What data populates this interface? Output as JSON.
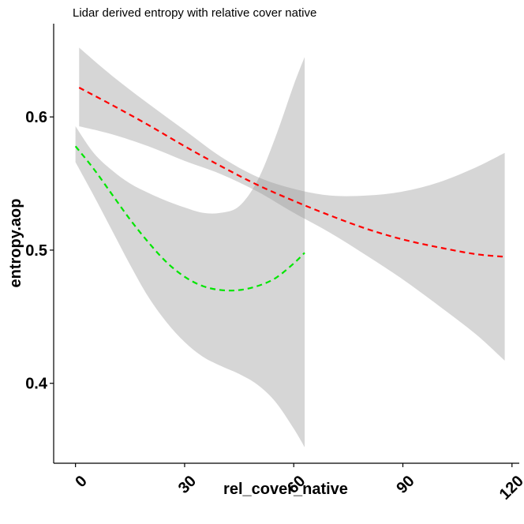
{
  "chart_data": {
    "type": "line",
    "title": "Lidar derived entropy with relative cover native",
    "xlabel": "rel_cover_native",
    "ylabel": "entropy.aop",
    "xlim": [
      -6,
      122
    ],
    "ylim": [
      0.34,
      0.67
    ],
    "x_ticks": [
      0,
      30,
      60,
      90,
      120
    ],
    "x_tick_labels": [
      "0",
      "30",
      "60",
      "90",
      "120"
    ],
    "y_ticks": [
      0.4,
      0.5,
      0.6
    ],
    "y_tick_labels": [
      "0.4",
      "0.5",
      "0.6"
    ],
    "grid": false,
    "legend": "none",
    "series": [
      {
        "color": "#ff0000",
        "line_style": "dashed",
        "x": [
          1,
          10,
          20,
          30,
          40,
          50,
          60,
          70,
          80,
          90,
          100,
          110,
          118
        ],
        "y": [
          0.622,
          0.609,
          0.594,
          0.578,
          0.563,
          0.549,
          0.537,
          0.526,
          0.516,
          0.508,
          0.502,
          0.497,
          0.495
        ],
        "ci_lower": [
          0.593,
          0.587,
          0.578,
          0.567,
          0.557,
          0.544,
          0.528,
          0.513,
          0.496,
          0.478,
          0.458,
          0.437,
          0.417
        ],
        "ci_upper": [
          0.652,
          0.631,
          0.61,
          0.59,
          0.57,
          0.555,
          0.546,
          0.541,
          0.541,
          0.544,
          0.551,
          0.562,
          0.573
        ]
      },
      {
        "color": "#00e600",
        "line_style": "dashed",
        "x": [
          0,
          5,
          10,
          15,
          20,
          25,
          30,
          35,
          40,
          45,
          50,
          55,
          60,
          63
        ],
        "y": [
          0.578,
          0.561,
          0.542,
          0.523,
          0.506,
          0.491,
          0.48,
          0.473,
          0.47,
          0.47,
          0.473,
          0.479,
          0.49,
          0.498
        ],
        "ci_lower": [
          0.566,
          0.541,
          0.515,
          0.489,
          0.465,
          0.446,
          0.431,
          0.42,
          0.413,
          0.407,
          0.399,
          0.386,
          0.366,
          0.352
        ],
        "ci_upper": [
          0.593,
          0.573,
          0.56,
          0.55,
          0.543,
          0.537,
          0.532,
          0.528,
          0.528,
          0.533,
          0.552,
          0.585,
          0.624,
          0.645
        ]
      }
    ]
  }
}
